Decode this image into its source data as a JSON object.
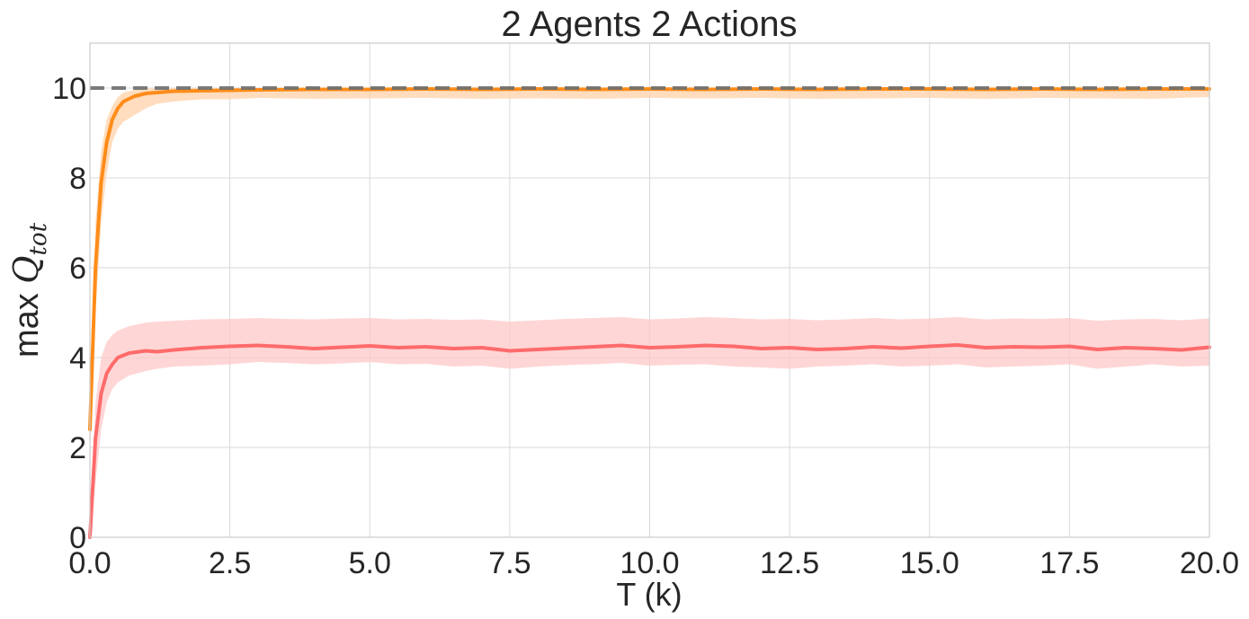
{
  "chart_data": {
    "type": "line",
    "title": "2 Agents 2 Actions",
    "xlabel": "T (k)",
    "ylabel_main": "max ",
    "ylabel_q": "Q",
    "ylabel_sub": "tot",
    "xlim": [
      0,
      20
    ],
    "ylim": [
      0,
      11
    ],
    "xticks": [
      0,
      2.5,
      5,
      7.5,
      10,
      12.5,
      15,
      17.5,
      20
    ],
    "xtick_labels": [
      "0.0",
      "2.5",
      "5.0",
      "7.5",
      "10.0",
      "12.5",
      "15.0",
      "17.5",
      "20.0"
    ],
    "yticks": [
      0,
      2,
      4,
      6,
      8,
      10
    ],
    "ytick_labels": [
      "0",
      "2",
      "4",
      "6",
      "8",
      "10"
    ],
    "grid": true,
    "legend": "none",
    "reference_line": {
      "y": 10,
      "style": "dashed",
      "color": "#6e6e6e"
    },
    "series": [
      {
        "color": "#ff8c1a",
        "band_color": "#ffd2a8",
        "x": [
          0,
          0.1,
          0.2,
          0.3,
          0.4,
          0.5,
          0.6,
          0.8,
          1.0,
          1.2,
          1.5,
          2.0,
          2.5,
          3,
          4,
          5,
          6,
          7,
          8,
          9,
          10,
          11,
          12,
          13,
          14,
          15,
          16,
          17,
          18,
          19,
          20
        ],
        "mean": [
          2.4,
          6.0,
          7.9,
          8.8,
          9.3,
          9.55,
          9.7,
          9.82,
          9.88,
          9.9,
          9.93,
          9.94,
          9.95,
          9.96,
          9.97,
          9.97,
          9.98,
          9.97,
          9.98,
          9.97,
          9.98,
          9.97,
          9.98,
          9.97,
          9.98,
          9.98,
          9.97,
          9.98,
          9.97,
          9.98,
          9.98
        ],
        "lower": [
          1.8,
          5.0,
          7.0,
          8.1,
          8.8,
          9.1,
          9.25,
          9.4,
          9.55,
          9.65,
          9.7,
          9.75,
          9.75,
          9.78,
          9.76,
          9.77,
          9.78,
          9.76,
          9.77,
          9.76,
          9.78,
          9.77,
          9.78,
          9.76,
          9.77,
          9.78,
          9.76,
          9.78,
          9.77,
          9.76,
          9.8
        ],
        "upper": [
          3.0,
          7.0,
          8.6,
          9.3,
          9.6,
          9.8,
          9.9,
          9.96,
          9.99,
          10.0,
          10.0,
          10.0,
          10.0,
          10.0,
          10.0,
          10.0,
          10.0,
          10.0,
          10.0,
          10.0,
          10.0,
          10.0,
          10.0,
          10.0,
          10.0,
          10.0,
          10.0,
          10.0,
          10.0,
          10.0,
          10.0
        ]
      },
      {
        "color": "#ff6b6b",
        "band_color": "#ffc8c8",
        "x": [
          0,
          0.1,
          0.2,
          0.3,
          0.4,
          0.5,
          0.7,
          1.0,
          1.2,
          1.5,
          2.0,
          2.5,
          3,
          3.5,
          4,
          4.5,
          5,
          5.5,
          6,
          6.5,
          7,
          7.5,
          8,
          8.5,
          9,
          9.5,
          10,
          10.5,
          11,
          11.5,
          12,
          12.5,
          13,
          13.5,
          14,
          14.5,
          15,
          15.5,
          16,
          16.5,
          17,
          17.5,
          18,
          18.5,
          19,
          19.5,
          20
        ],
        "mean": [
          0.0,
          2.2,
          3.2,
          3.65,
          3.85,
          4.0,
          4.1,
          4.15,
          4.13,
          4.17,
          4.22,
          4.25,
          4.27,
          4.24,
          4.2,
          4.23,
          4.26,
          4.22,
          4.24,
          4.2,
          4.22,
          4.15,
          4.18,
          4.21,
          4.24,
          4.27,
          4.22,
          4.24,
          4.27,
          4.25,
          4.2,
          4.22,
          4.18,
          4.2,
          4.24,
          4.21,
          4.25,
          4.28,
          4.22,
          4.24,
          4.23,
          4.25,
          4.18,
          4.22,
          4.2,
          4.17,
          4.23
        ],
        "lower": [
          0.0,
          1.2,
          2.4,
          3.0,
          3.3,
          3.45,
          3.6,
          3.7,
          3.75,
          3.8,
          3.82,
          3.85,
          3.9,
          3.88,
          3.85,
          3.87,
          3.9,
          3.85,
          3.86,
          3.8,
          3.82,
          3.75,
          3.8,
          3.83,
          3.85,
          3.88,
          3.82,
          3.84,
          3.85,
          3.8,
          3.78,
          3.75,
          3.8,
          3.82,
          3.85,
          3.8,
          3.82,
          3.85,
          3.78,
          3.8,
          3.82,
          3.85,
          3.75,
          3.8,
          3.85,
          3.8,
          3.82
        ],
        "upper": [
          0.0,
          3.0,
          4.0,
          4.35,
          4.5,
          4.6,
          4.7,
          4.78,
          4.8,
          4.82,
          4.85,
          4.86,
          4.88,
          4.86,
          4.85,
          4.87,
          4.88,
          4.85,
          4.86,
          4.84,
          4.85,
          4.8,
          4.83,
          4.86,
          4.88,
          4.9,
          4.85,
          4.87,
          4.9,
          4.88,
          4.85,
          4.86,
          4.83,
          4.85,
          4.88,
          4.85,
          4.87,
          4.9,
          4.85,
          4.87,
          4.86,
          4.88,
          4.82,
          4.85,
          4.86,
          4.83,
          4.87
        ]
      }
    ]
  }
}
